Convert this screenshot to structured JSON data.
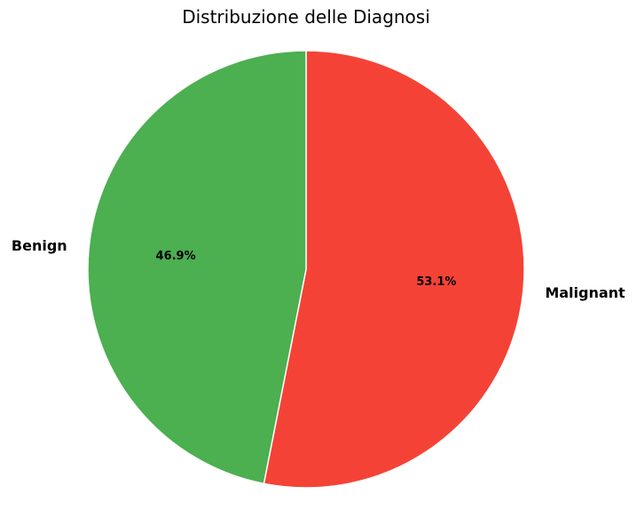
{
  "chart_data": {
    "type": "pie",
    "title": "Distribuzione delle Diagnosi",
    "categories": [
      "Malignant",
      "Benign"
    ],
    "values": [
      53.1,
      46.9
    ],
    "value_labels": [
      "53.1%",
      "46.9%"
    ],
    "colors": [
      "#f44336",
      "#4caf50"
    ],
    "edge_color": "#ffffff",
    "start_angle_deg": 90,
    "direction": "clockwise",
    "legend": "none"
  }
}
